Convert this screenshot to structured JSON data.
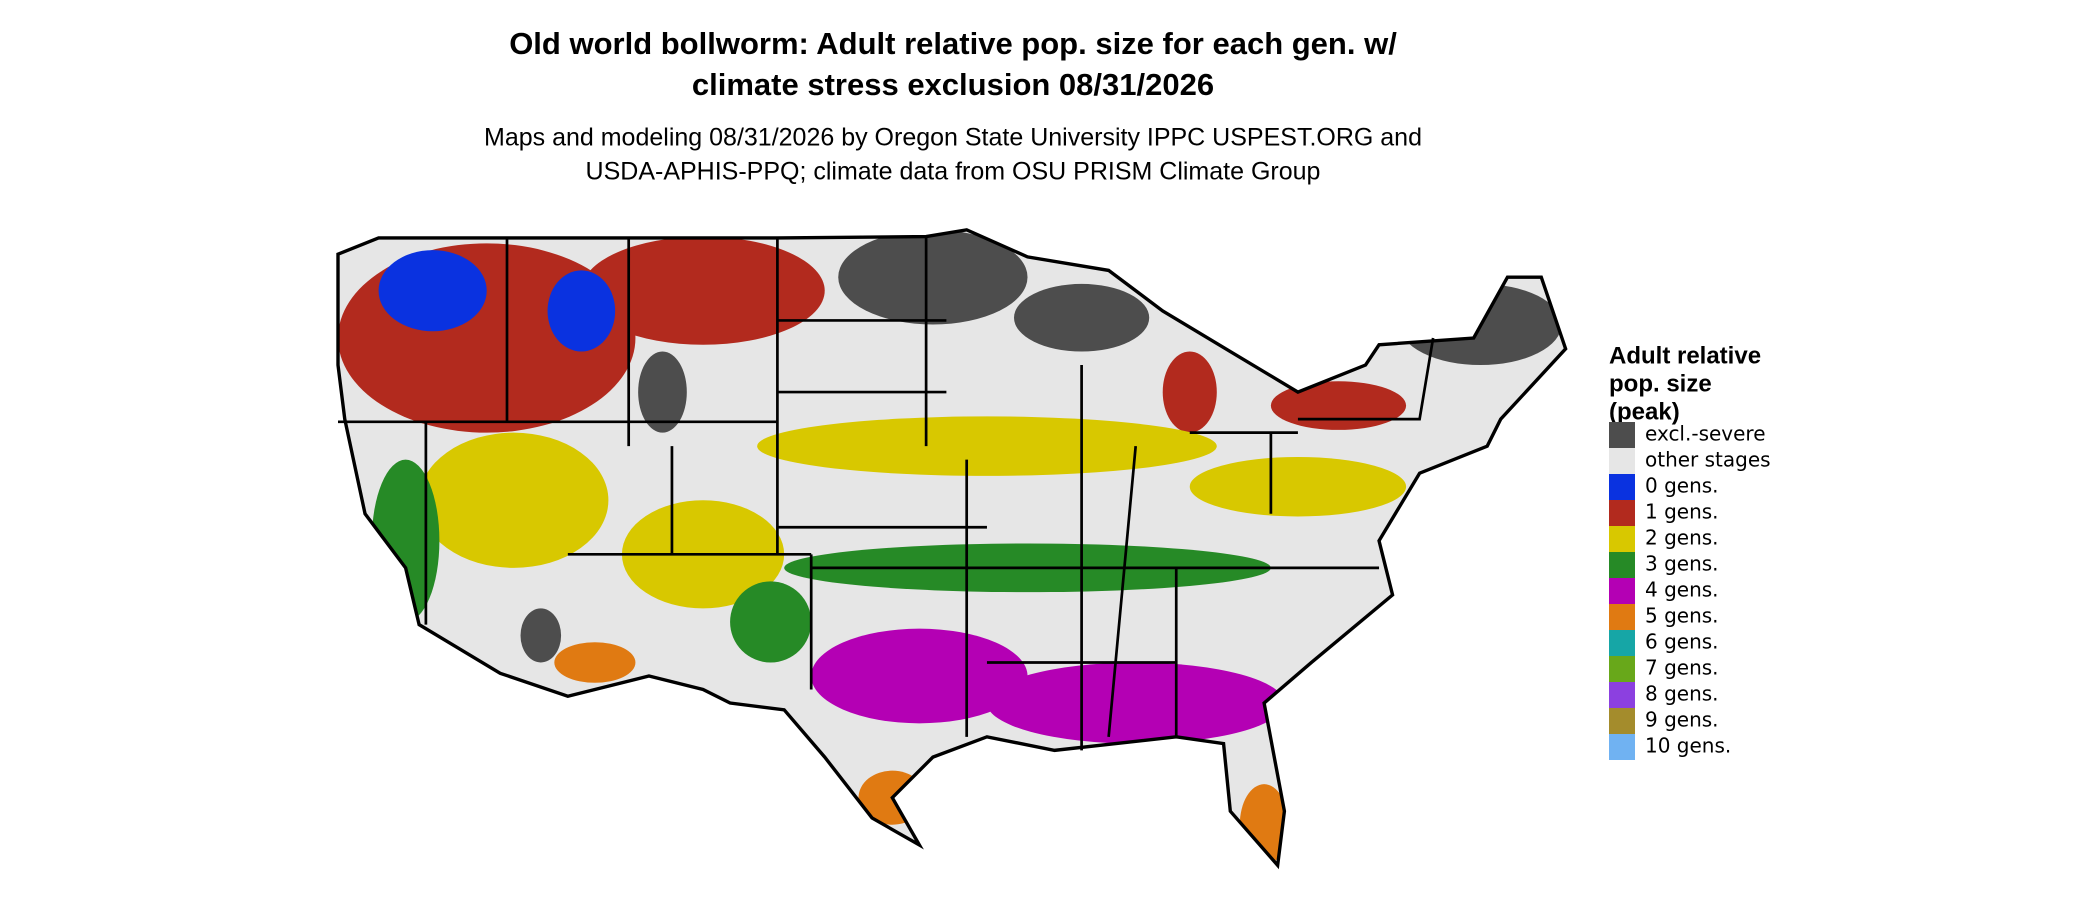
{
  "title": [
    "Old world bollworm: Adult relative pop. size for each gen. w/",
    "climate stress exclusion 08/31/2026"
  ],
  "subtitle": [
    "Maps and modeling 08/31/2026 by Oregon State University IPPC USPEST.ORG and",
    "USDA-APHIS-PPQ; climate data from OSU PRISM Climate Group"
  ],
  "legend": {
    "title": [
      "Adult relative",
      "pop. size",
      "(peak)"
    ],
    "items": [
      {
        "label": "excl.-severe",
        "color": "#4d4d4d"
      },
      {
        "label": "other stages",
        "color": "#e6e6e6"
      },
      {
        "label": "0 gens.",
        "color": "#0a32e0"
      },
      {
        "label": "1 gens.",
        "color": "#b22a1e"
      },
      {
        "label": "2 gens.",
        "color": "#d8c800"
      },
      {
        "label": "3 gens.",
        "color": "#268a26"
      },
      {
        "label": "4 gens.",
        "color": "#b400b4"
      },
      {
        "label": "5 gens.",
        "color": "#e07a12"
      },
      {
        "label": "6 gens.",
        "color": "#16a6a6"
      },
      {
        "label": "7 gens.",
        "color": "#68a81a"
      },
      {
        "label": "8 gens.",
        "color": "#8c40e0"
      },
      {
        "label": "9 gens.",
        "color": "#a48c2c"
      },
      {
        "label": "10 gens.",
        "color": "#70b2f2"
      }
    ]
  }
}
